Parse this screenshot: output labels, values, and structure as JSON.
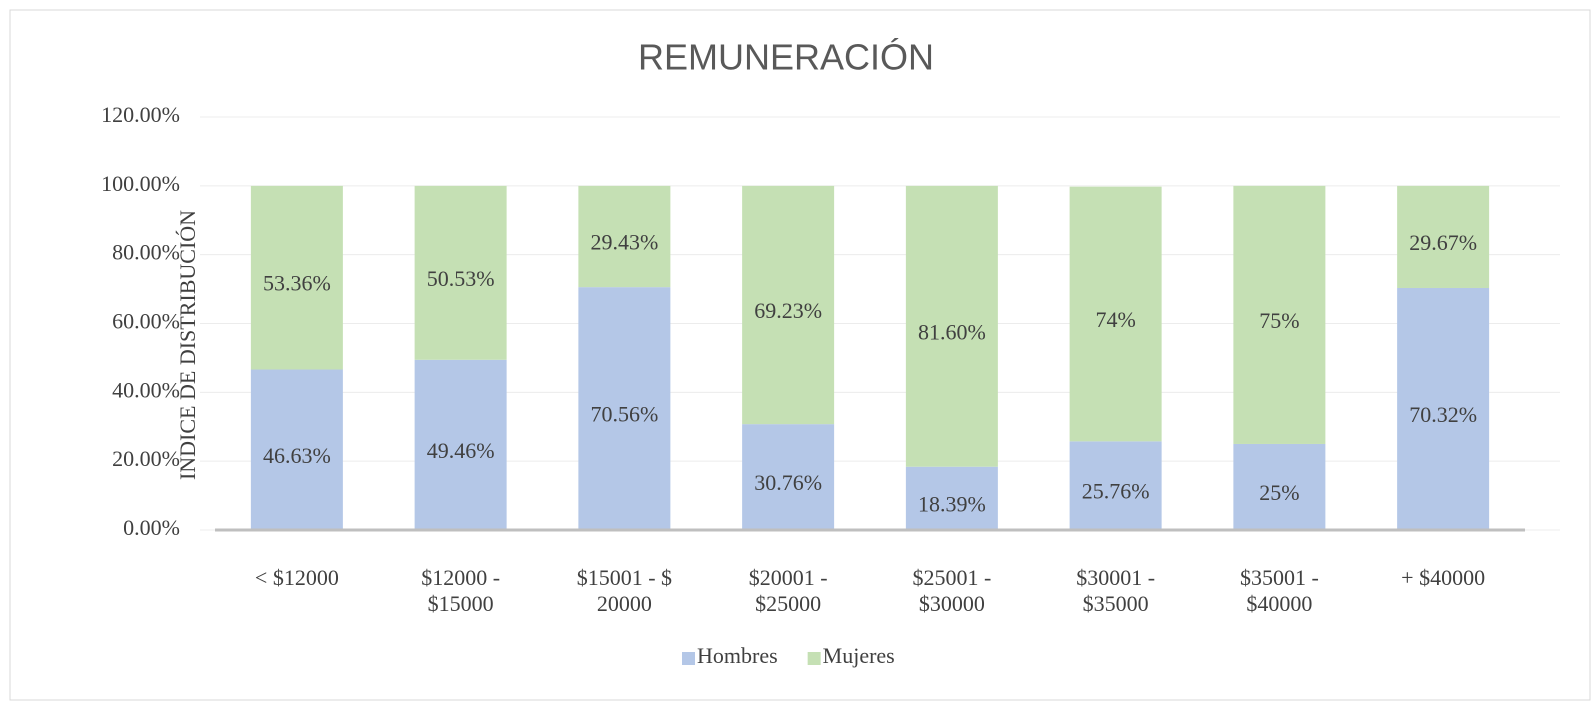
{
  "chart_data": {
    "type": "stacked_bar",
    "title": "REMUNERACIÓN",
    "y_label": "INDICE DE DISTRIBUCIÓN",
    "categories": [
      "< $12000",
      "$12000 - $15000",
      "$15001 - $ 20000",
      "$20001 - $25000",
      "$25001 - $30000",
      "$30001 - $35000",
      "$35001 - $40000",
      "+ $40000"
    ],
    "series": [
      {
        "name": "Hombres",
        "color": "#b4c7e7",
        "values": [
          46.63,
          49.46,
          70.56,
          30.76,
          18.39,
          25.76,
          25,
          70.32
        ],
        "value_labels": [
          "46.63%",
          "49.46%",
          "70.56%",
          "30.76%",
          "18.39%",
          "25.76%",
          "25%",
          "70.32%"
        ]
      },
      {
        "name": "Mujeres",
        "color": "#c5e0b4",
        "values": [
          53.36,
          50.53,
          29.43,
          69.23,
          81.6,
          74,
          75,
          29.67
        ],
        "value_labels": [
          "53.36%",
          "50.53%",
          "29.43%",
          "69.23%",
          "81.60%",
          "74%",
          "75%",
          "29.67%"
        ]
      }
    ],
    "ylim": [
      0,
      120
    ],
    "yticks": [
      {
        "value": 0,
        "label": "0.00%"
      },
      {
        "value": 20,
        "label": "20.00%"
      },
      {
        "value": 40,
        "label": "40.00%"
      },
      {
        "value": 60,
        "label": "60.00%"
      },
      {
        "value": 80,
        "label": "80.00%"
      },
      {
        "value": 100,
        "label": "100.00%"
      },
      {
        "value": 120,
        "label": "120.00%"
      }
    ],
    "grid": true,
    "legend": "bottom"
  }
}
